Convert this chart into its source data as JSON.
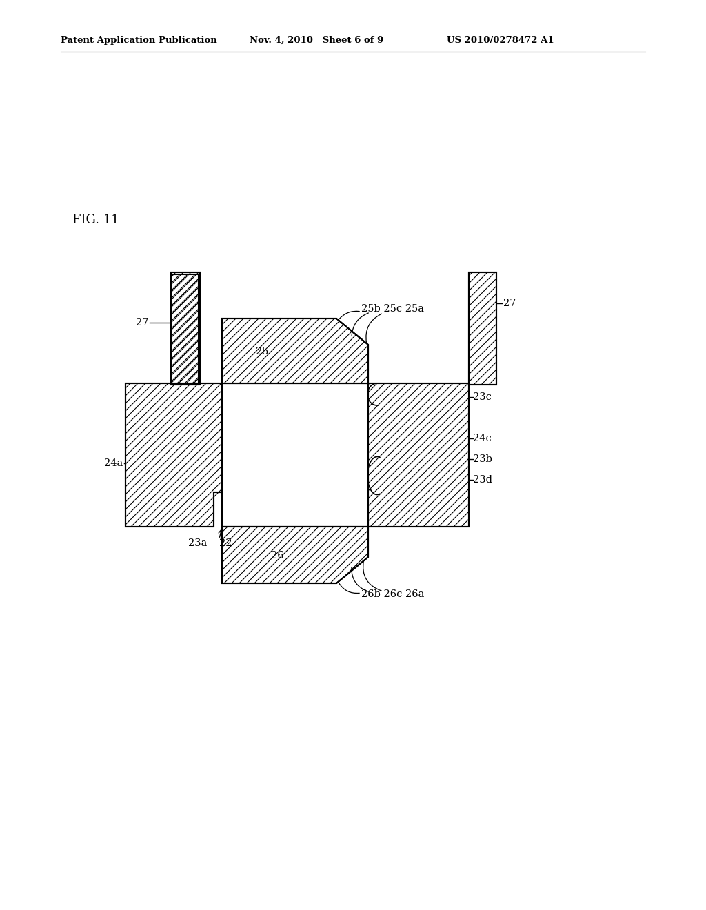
{
  "fig_label": "FIG. 11",
  "header_left": "Patent Application Publication",
  "header_mid": "Nov. 4, 2010   Sheet 6 of 9",
  "header_right": "US 2010/0278472 A1",
  "bg_color": "#ffffff",
  "line_color": "#000000",
  "hatch_color": "#000000",
  "labels": {
    "27_left": "27",
    "27_right": "27",
    "25": "25",
    "25b_25c_25a": "25b 25c 25a",
    "24a": "24a",
    "23a": "23a",
    "22": "22",
    "23c": "23c",
    "24c": "24c",
    "23b": "23b",
    "23d": "23d",
    "26": "26",
    "26b_26c_26a": "26b 26c 26a"
  }
}
